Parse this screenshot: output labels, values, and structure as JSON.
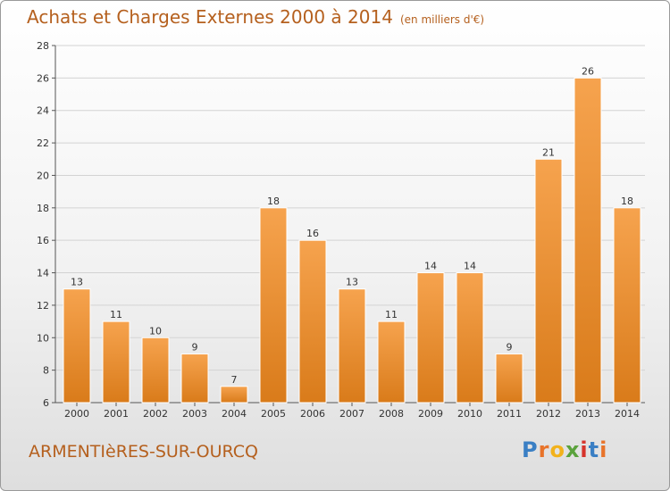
{
  "header": {
    "title": "Achats et Charges Externes 2000 à 2014",
    "subtitle": "(en milliers d'€)"
  },
  "footer": {
    "commune": "ARMENTIèRES-SUR-OURCQ",
    "brand": [
      "P",
      "r",
      "o",
      "x",
      "i",
      "t",
      "i"
    ]
  },
  "colors": {
    "bar_light": "#f6a34e",
    "bar_dark": "#d97b1a",
    "title": "#b5601e",
    "brand": [
      "#3a7fc4",
      "#e8732a",
      "#f2b21c",
      "#5aa23c",
      "#d6332b",
      "#3a7fc4",
      "#e8732a"
    ]
  },
  "chart_data": {
    "type": "bar",
    "title": "Achats et Charges Externes 2000 à 2014",
    "categories": [
      "2000",
      "2001",
      "2002",
      "2003",
      "2004",
      "2005",
      "2006",
      "2007",
      "2008",
      "2009",
      "2010",
      "2011",
      "2012",
      "2013",
      "2014"
    ],
    "values": [
      13,
      11,
      10,
      9,
      7,
      18,
      16,
      13,
      11,
      14,
      14,
      9,
      21,
      26,
      18
    ],
    "ylim": [
      6,
      28
    ],
    "yticks": [
      6,
      8,
      10,
      12,
      14,
      16,
      18,
      20,
      22,
      24,
      26,
      28
    ],
    "grid": true,
    "xlabel": "",
    "ylabel": ""
  }
}
